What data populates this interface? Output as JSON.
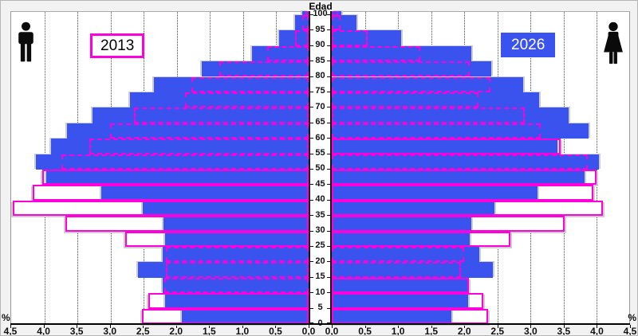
{
  "title": "Edad",
  "legend": {
    "year_2013": "2013",
    "year_2026": "2026"
  },
  "icons": {
    "male": "man-pictogram",
    "female": "woman-pictogram"
  },
  "colors": {
    "bar_2026": "#3b53ee",
    "outline_2013": "#ff00dd",
    "plot_background": "#ffffff",
    "outer_background": "#f2f2f2",
    "axis": "#000000",
    "gridline": "#555555",
    "shadow": "#cdcdcd"
  },
  "axis": {
    "percent_left": "%",
    "percent_right": "%",
    "x_left_labels": [
      "4,5",
      "4,0",
      "3,5",
      "3,0",
      "2,5",
      "2,0",
      "1,5",
      "1,0",
      "0,5",
      "0,0"
    ],
    "x_right_labels": [
      "0,0",
      "0,5",
      "1,0",
      "1,5",
      "2,0",
      "2,5",
      "3,0",
      "3,5",
      "4,0",
      "4,5"
    ],
    "x_max": 4.5,
    "age_tick_labels": [
      0,
      5,
      10,
      15,
      20,
      25,
      30,
      35,
      40,
      45,
      50,
      55,
      60,
      65,
      70,
      75,
      80,
      85,
      90,
      95,
      100
    ]
  },
  "chart_data": {
    "type": "bar",
    "subtype": "population-pyramid",
    "title": "Edad",
    "xlabel": "%",
    "ylabel": "Edad",
    "xlim_each_side": [
      0,
      4.5
    ],
    "grid": "dotted vertical every 0.5",
    "legend_position": "top, inside plot (2013 left, 2026 right)",
    "age_groups": [
      "0-4",
      "5-9",
      "10-14",
      "15-19",
      "20-24",
      "25-29",
      "30-34",
      "35-39",
      "40-44",
      "45-49",
      "50-54",
      "55-59",
      "60-64",
      "65-69",
      "70-74",
      "75-79",
      "80-84",
      "85-89",
      "90-94",
      "95-99",
      "100+"
    ],
    "series": [
      {
        "name": "male_2013",
        "side": "left",
        "style": "white fill, magenta outline",
        "values": [
          2.51,
          2.42,
          2.18,
          2.15,
          2.15,
          2.77,
          3.67,
          4.46,
          4.16,
          4.02,
          3.73,
          3.31,
          3.0,
          2.64,
          1.86,
          1.77,
          1.35,
          0.62,
          0.2,
          0.1,
          0.05
        ]
      },
      {
        "name": "male_2026",
        "side": "left",
        "style": "solid blue",
        "values": [
          1.91,
          2.17,
          2.2,
          2.58,
          2.2,
          2.17,
          2.19,
          2.5,
          3.13,
          3.96,
          4.12,
          3.89,
          3.65,
          3.26,
          2.7,
          2.33,
          1.61,
          0.86,
          0.45,
          0.2,
          0.1
        ]
      },
      {
        "name": "female_2013",
        "side": "right",
        "style": "white fill, magenta outline",
        "values": [
          2.36,
          2.29,
          2.07,
          1.95,
          2.0,
          2.69,
          3.51,
          4.09,
          3.95,
          4.0,
          3.86,
          3.45,
          3.15,
          2.91,
          2.21,
          2.39,
          2.08,
          1.33,
          0.54,
          0.13,
          0.1
        ]
      },
      {
        "name": "female_2026",
        "side": "right",
        "style": "solid blue",
        "values": [
          1.81,
          2.06,
          2.05,
          2.43,
          2.23,
          2.08,
          2.1,
          2.45,
          3.1,
          3.82,
          4.03,
          3.4,
          3.88,
          3.57,
          3.13,
          2.89,
          2.41,
          2.1,
          1.05,
          0.37,
          0.15
        ]
      }
    ]
  }
}
